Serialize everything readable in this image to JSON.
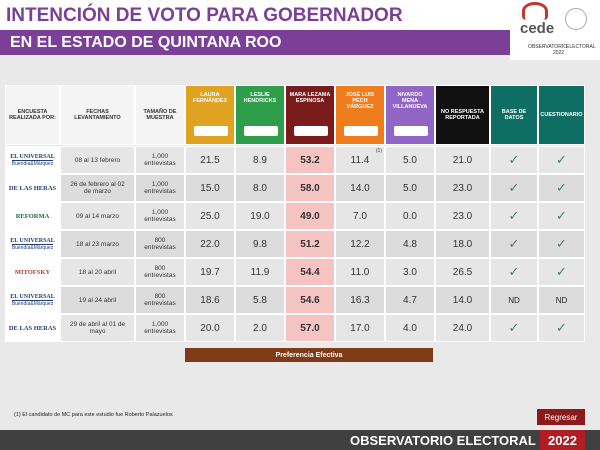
{
  "header": {
    "title": "INTENCIÓN DE VOTO PARA GOBERNADOR",
    "subtitle": "EN EL ESTADO DE QUINTANA ROO",
    "logo": "cede",
    "logo_caption": [
      "OBSERVATORIO",
      "ELECTORAL",
      "2022"
    ]
  },
  "table": {
    "columns": [
      "ENCUESTA REALIZADA POR:",
      "FECHAS LEVANTAMIENTO",
      "TAMAÑO DE MUESTRA",
      "LAURA FERNÁNDEZ",
      "LESLIE HENDRICKS",
      "MARA LEZAMA ESPINOSA",
      "JOSÉ LUIS PECH VÁRGUEZ",
      "NIVARDO MENA VILLANUEVA",
      "NO RESPUESTA REPORTADA",
      "BASE DE DATOS",
      "CUESTIONARIO"
    ],
    "rows": [
      {
        "pollster": "EL UNIVERSAL",
        "pollster_sub": "Buendía&Márquez",
        "dates": "08 al 13 febrero",
        "sample": "1,000 entrevistas",
        "values": [
          "21.5",
          "8.9",
          "53.2",
          "11.4",
          "5.0",
          "21.0"
        ],
        "note": "(1)",
        "database": "✓",
        "questionnaire": "✓"
      },
      {
        "pollster": "DE LAS HERAS",
        "dates": "26 de febrero al 02 de marzo",
        "sample": "1,000 entrevistas",
        "values": [
          "15.0",
          "8.0",
          "58.0",
          "14.0",
          "5.0",
          "23.0"
        ],
        "database": "✓",
        "questionnaire": "✓"
      },
      {
        "pollster": "REFORMA",
        "dates": "09 al 14 marzo",
        "sample": "1,000 entrevistas",
        "values": [
          "25.0",
          "19.0",
          "49.0",
          "7.0",
          "0.0",
          "23.0"
        ],
        "database": "✓",
        "questionnaire": "✓"
      },
      {
        "pollster": "EL UNIVERSAL",
        "pollster_sub": "Buendía&Márquez",
        "dates": "18 al 23 marzo",
        "sample": "800 entrevistas",
        "values": [
          "22.0",
          "9.8",
          "51.2",
          "12.2",
          "4.8",
          "18.0"
        ],
        "database": "✓",
        "questionnaire": "✓"
      },
      {
        "pollster": "MITOFSKY",
        "dates": "18 al 20 abril",
        "sample": "800 entrevistas",
        "values": [
          "19.7",
          "11.9",
          "54.4",
          "11.0",
          "3.0",
          "26.5"
        ],
        "database": "✓",
        "questionnaire": "✓"
      },
      {
        "pollster": "EL UNIVERSAL",
        "pollster_sub": "Buendía&Márquez",
        "dates": "19 al 24 abril",
        "sample": "800 entrevistas",
        "values": [
          "18.6",
          "5.8",
          "54.6",
          "16.3",
          "4.7",
          "14.0"
        ],
        "database": "ND",
        "questionnaire": "ND"
      },
      {
        "pollster": "DE LAS HERAS",
        "dates": "29 de abril al 01 de mayo",
        "sample": "1,000 entrevistas",
        "values": [
          "20.0",
          "2.0",
          "57.0",
          "17.0",
          "4.0",
          "24.0"
        ],
        "database": "✓",
        "questionnaire": "✓"
      }
    ],
    "effective_label": "Preferencia Efectiva"
  },
  "footnote": "(1) El candidato de MC para este estudio fue Roberto Palazuelos",
  "button": "Regresar",
  "footer": {
    "label": "OBSERVATORIO ELECTORAL",
    "year": "2022"
  }
}
